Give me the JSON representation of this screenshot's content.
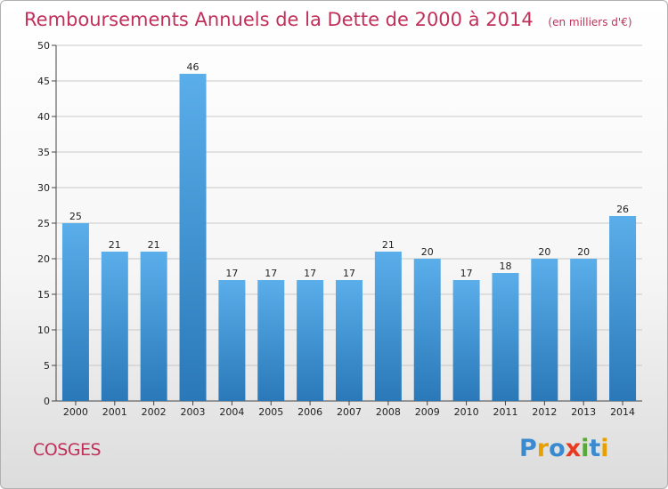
{
  "header": {
    "title": "Remboursements Annuels de la Dette de 2000 à 2014",
    "unit": "(en milliers d'€)"
  },
  "footer": {
    "commune": "COSGES",
    "logo_text": "Proxiti"
  },
  "colors": {
    "title": "#c0305a",
    "bar_top": "#5aaeea",
    "bar_bottom": "#2a78b8",
    "grid": "#c8c8c8",
    "logo": [
      "#3a8ad0",
      "#e8a000",
      "#3a8ad0",
      "#e83a20",
      "#5aa83a",
      "#3a8ad0",
      "#e8a000"
    ]
  },
  "chart_data": {
    "type": "bar",
    "categories": [
      "2000",
      "2001",
      "2002",
      "2003",
      "2004",
      "2005",
      "2006",
      "2007",
      "2008",
      "2009",
      "2010",
      "2011",
      "2012",
      "2013",
      "2014"
    ],
    "values": [
      25,
      21,
      21,
      46,
      17,
      17,
      17,
      17,
      21,
      20,
      17,
      18,
      20,
      20,
      26
    ],
    "title": "Remboursements Annuels de la Dette de 2000 à 2014",
    "ylim": [
      0,
      50
    ],
    "yticks": [
      0,
      5,
      10,
      15,
      20,
      25,
      30,
      35,
      40,
      45,
      50
    ],
    "grid": true,
    "data_labels": true
  }
}
